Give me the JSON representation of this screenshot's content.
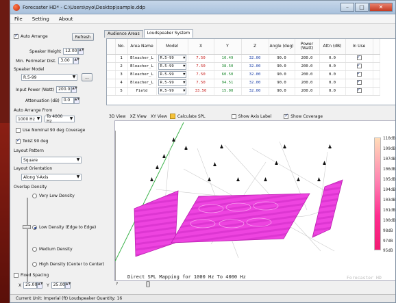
{
  "window": {
    "title": "Forecaster HD* - C:\\Users\\oyo\\Desktop\\sample.ddp"
  },
  "menu": [
    "File",
    "Setting",
    "About"
  ],
  "left": {
    "auto_arrange": "Auto Arrange",
    "refresh": "Refresh",
    "speaker_height_label": "Speaker Height",
    "speaker_height_value": "12.00",
    "perimeter_label": "Min. Perimeter Dist.",
    "perimeter_value": "3.00",
    "speaker_model_label": "Speaker Model",
    "speaker_model_value": "R.5-99",
    "more_button": "...",
    "input_power_label": "Input Power (Watt)",
    "input_power_value": "200.0",
    "attenuation_label": "Attenuation (dB)",
    "attenuation_value": "0.0",
    "auto_arrange_from_label": "Auto Arrange From",
    "from_value": "1000 Hz",
    "to_value": "To 4000 Hz",
    "nominal_coverage": "Use Nominal 90 deg Coverage",
    "twist": "Twist 90 deg",
    "layout_pattern_label": "Layout Pattern",
    "layout_pattern_value": "Square",
    "layout_orientation_label": "Layout Orientation",
    "layout_orientation_value": "Along Y-Axis",
    "overlap_density_label": "Overlap Density",
    "density_options": [
      "Very Low Density",
      "Low Density (Edge to Edge)",
      "Medium Density",
      "High Density (Center to Center)"
    ],
    "fixed_spacing": "Fixed Spacing",
    "x_label": "X",
    "x_value": "25.00",
    "y_label": "Y",
    "y_value": "25.00"
  },
  "tabs": [
    "Audience Areas",
    "Loudspeaker System"
  ],
  "table": {
    "headers": [
      "No.",
      "Area Name",
      "Model",
      "X",
      "Y",
      "Z",
      "Angle (deg)",
      "Power (Watt)",
      "Attn (dB)",
      "In Use"
    ],
    "rows": [
      [
        "1",
        "Bleacher_L",
        "R.5-99",
        "7.50",
        "10.49",
        "32.00",
        "90.0",
        "200.0",
        "0.0"
      ],
      [
        "2",
        "Bleacher_L",
        "R.5-99",
        "7.50",
        "38.50",
        "32.00",
        "90.0",
        "200.0",
        "0.0"
      ],
      [
        "3",
        "Bleacher_L",
        "R.5-99",
        "7.50",
        "60.50",
        "32.00",
        "90.0",
        "200.0",
        "0.0"
      ],
      [
        "4",
        "Bleacher_L",
        "R.5-99",
        "7.50",
        "94.51",
        "32.00",
        "90.0",
        "200.0",
        "0.0"
      ],
      [
        "5",
        "Field",
        "R.5-99",
        "33.50",
        "15.00",
        "32.00",
        "90.0",
        "200.0",
        "0.0"
      ]
    ]
  },
  "viewbar": {
    "view3d": "3D View",
    "xz": "XZ View",
    "xy": "XY View",
    "calc": "Calculate SPL",
    "axis_label": "Show Axis Label",
    "coverage": "Show Coverage"
  },
  "viewport": {
    "caption": "Direct SPL Mapping for 1000 Hz To 4000 Hz",
    "watermark": "Forecaster HD",
    "legend": [
      "110dB",
      "109dB",
      "107dB",
      "106dB",
      "105dB",
      "104dB",
      "103dB",
      "101dB",
      "100dB",
      "98dB",
      "97dB",
      "95dB"
    ],
    "colors": {
      "surface": "#ee44e0",
      "surface_dark": "#c423b8"
    }
  },
  "scroll": {
    "left_mark": "?"
  },
  "status": {
    "text": "Current Unit: Imperial (ft)   Loudspeaker Quantity: 16"
  }
}
